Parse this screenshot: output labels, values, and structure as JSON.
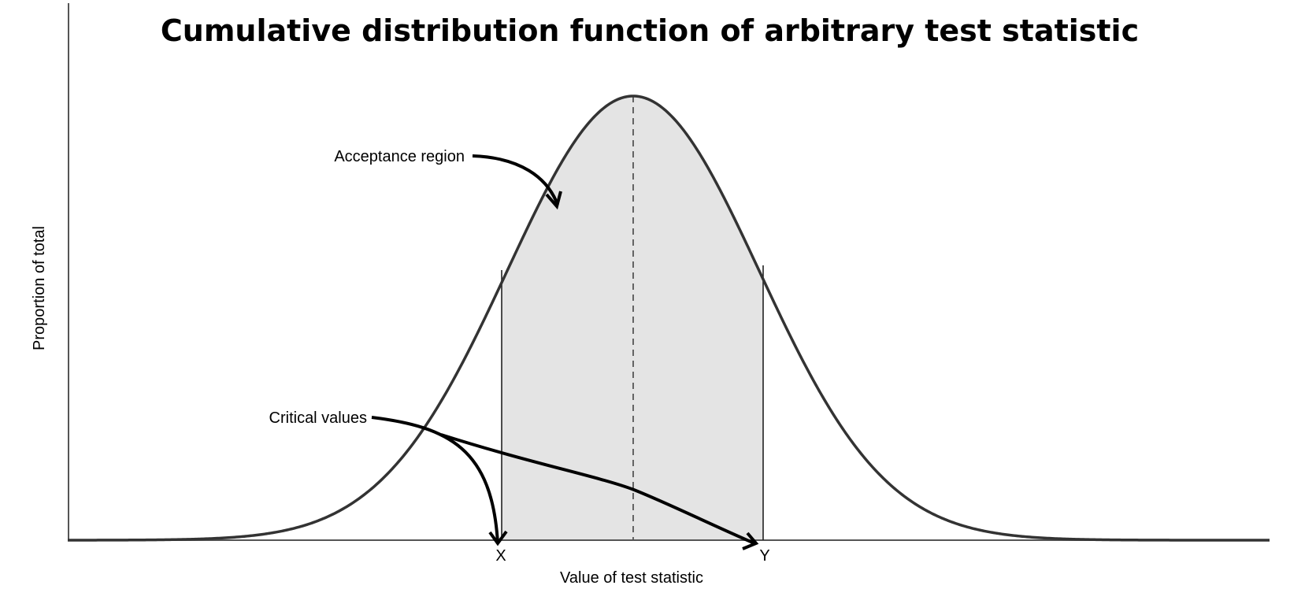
{
  "diagram": {
    "title": "Cumulative distribution function of arbitrary test statistic",
    "xlabel": "Value of test statistic",
    "ylabel": "Proportion of total",
    "annotations": {
      "acceptance": "Acceptance region",
      "critical": "Critical values"
    },
    "critical_labels": [
      "X",
      "Y"
    ],
    "colors": {
      "curve": "#333333",
      "shade": "#e4e4e4",
      "axis": "#555555",
      "arrow": "#000000"
    }
  }
}
